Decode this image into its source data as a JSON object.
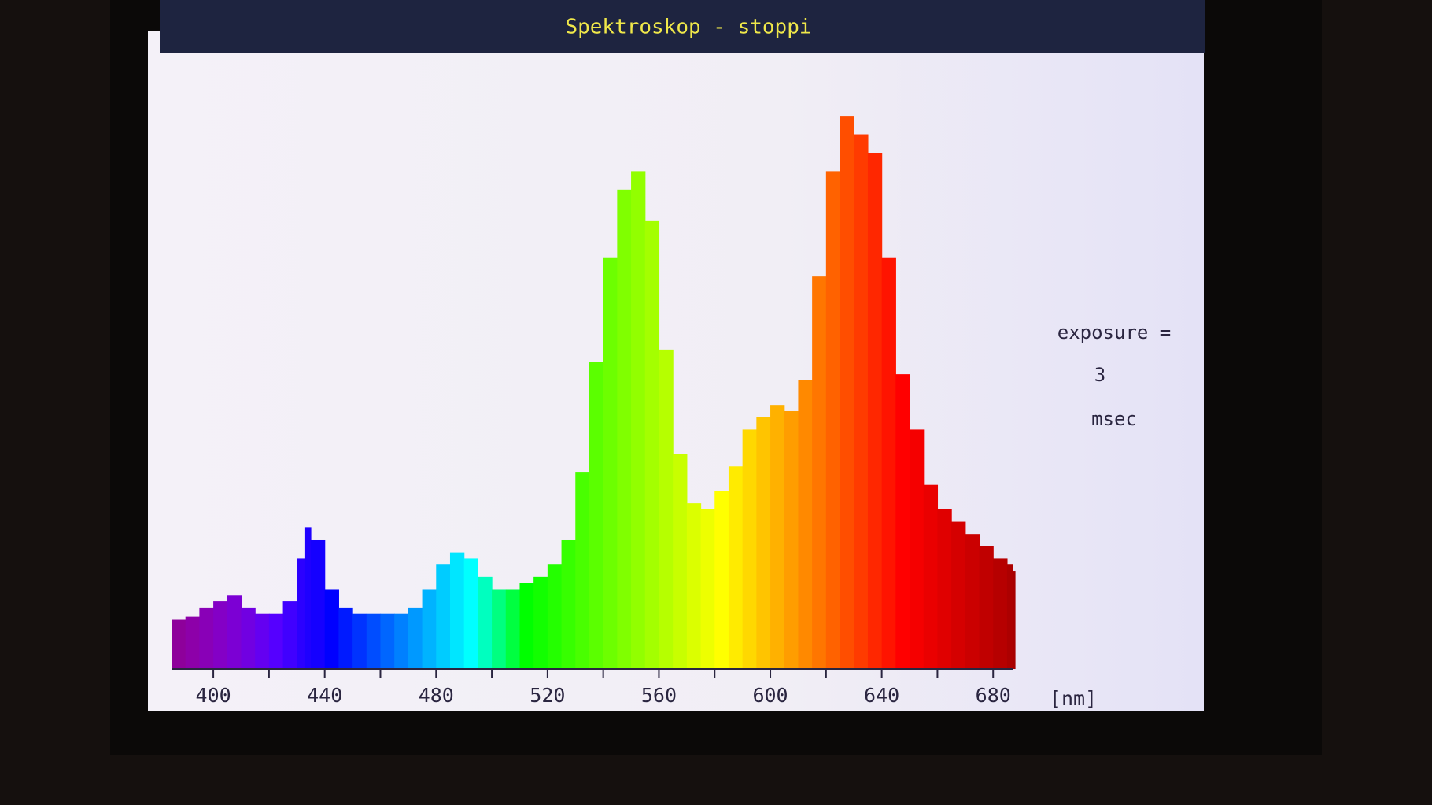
{
  "chart_data": {
    "type": "spectrum",
    "title": "Spektroskop - stoppi",
    "x_unit": "[nm]",
    "x": [
      385,
      390,
      395,
      400,
      405,
      410,
      415,
      420,
      425,
      430,
      433,
      435,
      440,
      445,
      450,
      455,
      460,
      465,
      470,
      475,
      480,
      485,
      490,
      495,
      500,
      505,
      510,
      515,
      520,
      525,
      530,
      535,
      540,
      545,
      550,
      555,
      560,
      565,
      570,
      575,
      580,
      585,
      590,
      595,
      600,
      605,
      610,
      615,
      620,
      625,
      630,
      635,
      640,
      645,
      650,
      655,
      660,
      665,
      670,
      675,
      680,
      685,
      687
    ],
    "values": [
      8,
      8.5,
      10,
      11,
      12,
      10,
      9,
      9,
      11,
      18,
      23,
      21,
      13,
      10,
      9,
      9,
      9,
      9,
      10,
      13,
      17,
      19,
      18,
      15,
      13,
      13,
      14,
      15,
      17,
      21,
      32,
      50,
      67,
      78,
      81,
      73,
      52,
      35,
      27,
      26,
      29,
      33,
      39,
      41,
      43,
      42,
      47,
      64,
      81,
      90,
      87,
      84,
      67,
      48,
      39,
      30,
      26,
      24,
      22,
      20,
      18,
      17,
      16
    ],
    "xlim": [
      385,
      687
    ],
    "ylim": [
      0,
      100
    ],
    "xticks": [
      400,
      440,
      480,
      520,
      560,
      600,
      640,
      680
    ],
    "xminorticks": [
      420,
      460,
      500,
      540,
      580,
      620,
      660
    ],
    "annotation": {
      "label": "exposure =",
      "value": 3,
      "unit": "msec"
    }
  }
}
